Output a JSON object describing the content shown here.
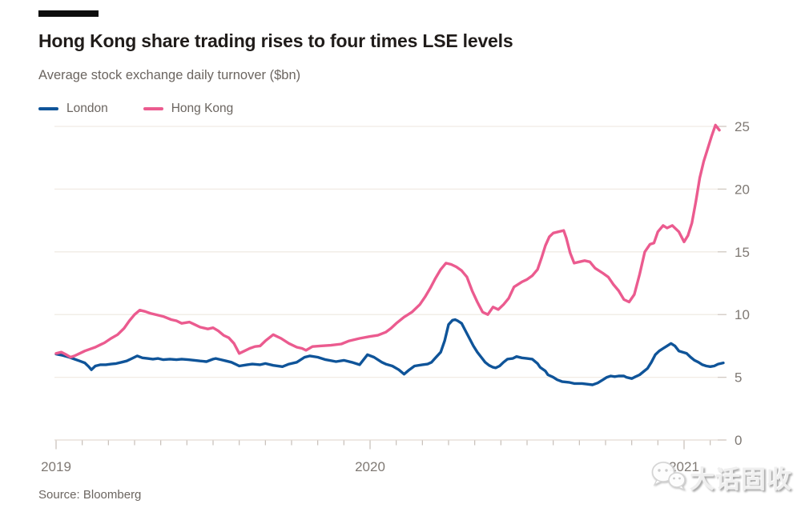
{
  "header": {
    "title": "Hong Kong share trading rises to four times LSE levels",
    "subtitle": "Average stock exchange daily turnover ($bn)"
  },
  "legend": [
    {
      "label": "London",
      "color": "#0f5499"
    },
    {
      "label": "Hong Kong",
      "color": "#eb5b8f"
    }
  ],
  "source": "Source: Bloomberg",
  "watermark": {
    "icon": "wechat-icon",
    "text": "大话固收"
  },
  "chart_data": {
    "type": "line",
    "title": "Hong Kong share trading rises to four times LSE levels",
    "ylabel": "Average stock exchange daily turnover ($bn)",
    "grid": "horizontal",
    "legend_position": "top-left",
    "x_axis": {
      "unit": "months since Jan 2019",
      "range": [
        0,
        25.7
      ],
      "minor_tick_every_months": 1,
      "ticks": [
        {
          "label": "2019",
          "t": 0
        },
        {
          "label": "2020",
          "t": 12
        },
        {
          "label": "2021",
          "t": 24
        }
      ]
    },
    "y_axis": {
      "side": "right",
      "range": [
        0,
        25.5
      ],
      "ticks": [
        0,
        5,
        10,
        15,
        20,
        25
      ]
    },
    "series": [
      {
        "name": "London",
        "color": "#0f5499",
        "points": [
          [
            0,
            6.85
          ],
          [
            0.25,
            6.75
          ],
          [
            0.5,
            6.6
          ],
          [
            0.7,
            6.45
          ],
          [
            0.9,
            6.3
          ],
          [
            1.1,
            6.15
          ],
          [
            1.25,
            5.85
          ],
          [
            1.35,
            5.6
          ],
          [
            1.5,
            5.9
          ],
          [
            1.7,
            6.0
          ],
          [
            1.9,
            6.0
          ],
          [
            2.1,
            6.05
          ],
          [
            2.3,
            6.1
          ],
          [
            2.5,
            6.2
          ],
          [
            2.7,
            6.3
          ],
          [
            2.9,
            6.5
          ],
          [
            3.1,
            6.7
          ],
          [
            3.3,
            6.55
          ],
          [
            3.5,
            6.5
          ],
          [
            3.7,
            6.45
          ],
          [
            3.9,
            6.5
          ],
          [
            4.1,
            6.4
          ],
          [
            4.35,
            6.45
          ],
          [
            4.6,
            6.4
          ],
          [
            4.8,
            6.45
          ],
          [
            5.05,
            6.4
          ],
          [
            5.3,
            6.35
          ],
          [
            5.5,
            6.3
          ],
          [
            5.75,
            6.25
          ],
          [
            6.0,
            6.45
          ],
          [
            6.1,
            6.5
          ],
          [
            6.3,
            6.4
          ],
          [
            6.5,
            6.3
          ],
          [
            6.7,
            6.2
          ],
          [
            6.9,
            6.0
          ],
          [
            7.0,
            5.9
          ],
          [
            7.3,
            6.0
          ],
          [
            7.5,
            6.05
          ],
          [
            7.8,
            6.0
          ],
          [
            8.0,
            6.1
          ],
          [
            8.3,
            5.95
          ],
          [
            8.65,
            5.85
          ],
          [
            8.9,
            6.05
          ],
          [
            9.2,
            6.2
          ],
          [
            9.5,
            6.6
          ],
          [
            9.7,
            6.7
          ],
          [
            10.0,
            6.6
          ],
          [
            10.3,
            6.4
          ],
          [
            10.7,
            6.25
          ],
          [
            11.0,
            6.35
          ],
          [
            11.3,
            6.2
          ],
          [
            11.6,
            6.0
          ],
          [
            11.9,
            6.8
          ],
          [
            12.15,
            6.6
          ],
          [
            12.45,
            6.2
          ],
          [
            12.6,
            6.05
          ],
          [
            12.85,
            5.9
          ],
          [
            13.1,
            5.6
          ],
          [
            13.3,
            5.25
          ],
          [
            13.5,
            5.6
          ],
          [
            13.7,
            5.9
          ],
          [
            14.0,
            6.0
          ],
          [
            14.2,
            6.05
          ],
          [
            14.35,
            6.2
          ],
          [
            14.5,
            6.55
          ],
          [
            14.7,
            7.0
          ],
          [
            14.85,
            7.9
          ],
          [
            15.0,
            9.2
          ],
          [
            15.15,
            9.55
          ],
          [
            15.25,
            9.6
          ],
          [
            15.35,
            9.5
          ],
          [
            15.5,
            9.3
          ],
          [
            15.65,
            8.7
          ],
          [
            15.8,
            8.1
          ],
          [
            15.95,
            7.5
          ],
          [
            16.1,
            7.0
          ],
          [
            16.25,
            6.6
          ],
          [
            16.4,
            6.2
          ],
          [
            16.55,
            5.95
          ],
          [
            16.7,
            5.8
          ],
          [
            16.8,
            5.75
          ],
          [
            16.95,
            5.9
          ],
          [
            17.1,
            6.2
          ],
          [
            17.25,
            6.45
          ],
          [
            17.45,
            6.5
          ],
          [
            17.6,
            6.65
          ],
          [
            17.8,
            6.55
          ],
          [
            18.0,
            6.5
          ],
          [
            18.2,
            6.45
          ],
          [
            18.4,
            6.1
          ],
          [
            18.5,
            5.8
          ],
          [
            18.7,
            5.5
          ],
          [
            18.8,
            5.2
          ],
          [
            19.0,
            5.0
          ],
          [
            19.15,
            4.8
          ],
          [
            19.35,
            4.65
          ],
          [
            19.6,
            4.6
          ],
          [
            19.8,
            4.5
          ],
          [
            20.1,
            4.5
          ],
          [
            20.3,
            4.45
          ],
          [
            20.5,
            4.4
          ],
          [
            20.7,
            4.55
          ],
          [
            20.9,
            4.8
          ],
          [
            21.05,
            5.0
          ],
          [
            21.2,
            5.1
          ],
          [
            21.35,
            5.05
          ],
          [
            21.5,
            5.1
          ],
          [
            21.7,
            5.1
          ],
          [
            21.8,
            5.0
          ],
          [
            22.0,
            4.9
          ],
          [
            22.1,
            5.0
          ],
          [
            22.3,
            5.2
          ],
          [
            22.45,
            5.45
          ],
          [
            22.6,
            5.7
          ],
          [
            22.75,
            6.2
          ],
          [
            22.9,
            6.8
          ],
          [
            23.05,
            7.1
          ],
          [
            23.2,
            7.3
          ],
          [
            23.35,
            7.5
          ],
          [
            23.5,
            7.7
          ],
          [
            23.65,
            7.5
          ],
          [
            23.8,
            7.1
          ],
          [
            23.95,
            7.0
          ],
          [
            24.1,
            6.9
          ],
          [
            24.25,
            6.6
          ],
          [
            24.4,
            6.35
          ],
          [
            24.55,
            6.2
          ],
          [
            24.7,
            6.0
          ],
          [
            24.85,
            5.9
          ],
          [
            25.0,
            5.85
          ],
          [
            25.15,
            5.9
          ],
          [
            25.3,
            6.05
          ],
          [
            25.5,
            6.15
          ]
        ]
      },
      {
        "name": "Hong Kong",
        "color": "#eb5b8f",
        "points": [
          [
            0,
            6.9
          ],
          [
            0.2,
            7.0
          ],
          [
            0.35,
            6.85
          ],
          [
            0.55,
            6.6
          ],
          [
            0.7,
            6.7
          ],
          [
            0.9,
            6.9
          ],
          [
            1.1,
            7.1
          ],
          [
            1.3,
            7.25
          ],
          [
            1.5,
            7.4
          ],
          [
            1.7,
            7.6
          ],
          [
            1.85,
            7.75
          ],
          [
            2.1,
            8.1
          ],
          [
            2.35,
            8.4
          ],
          [
            2.6,
            8.9
          ],
          [
            2.8,
            9.5
          ],
          [
            3.0,
            10.0
          ],
          [
            3.2,
            10.35
          ],
          [
            3.4,
            10.25
          ],
          [
            3.6,
            10.1
          ],
          [
            3.9,
            9.95
          ],
          [
            4.1,
            9.85
          ],
          [
            4.4,
            9.6
          ],
          [
            4.6,
            9.5
          ],
          [
            4.8,
            9.3
          ],
          [
            5.1,
            9.4
          ],
          [
            5.3,
            9.2
          ],
          [
            5.5,
            9.0
          ],
          [
            5.8,
            8.85
          ],
          [
            6.0,
            8.95
          ],
          [
            6.2,
            8.7
          ],
          [
            6.4,
            8.35
          ],
          [
            6.6,
            8.15
          ],
          [
            6.8,
            7.7
          ],
          [
            7.0,
            6.9
          ],
          [
            7.2,
            7.1
          ],
          [
            7.4,
            7.3
          ],
          [
            7.6,
            7.45
          ],
          [
            7.8,
            7.5
          ],
          [
            8.0,
            7.9
          ],
          [
            8.3,
            8.4
          ],
          [
            8.6,
            8.1
          ],
          [
            8.9,
            7.7
          ],
          [
            9.2,
            7.4
          ],
          [
            9.4,
            7.3
          ],
          [
            9.55,
            7.15
          ],
          [
            9.8,
            7.45
          ],
          [
            10.1,
            7.5
          ],
          [
            10.5,
            7.55
          ],
          [
            10.9,
            7.65
          ],
          [
            11.2,
            7.9
          ],
          [
            11.6,
            8.1
          ],
          [
            12.0,
            8.25
          ],
          [
            12.3,
            8.35
          ],
          [
            12.6,
            8.6
          ],
          [
            12.8,
            8.9
          ],
          [
            13.0,
            9.3
          ],
          [
            13.3,
            9.8
          ],
          [
            13.6,
            10.2
          ],
          [
            13.9,
            10.8
          ],
          [
            14.1,
            11.4
          ],
          [
            14.3,
            12.1
          ],
          [
            14.5,
            12.9
          ],
          [
            14.7,
            13.6
          ],
          [
            14.9,
            14.1
          ],
          [
            15.1,
            14.0
          ],
          [
            15.3,
            13.8
          ],
          [
            15.5,
            13.5
          ],
          [
            15.7,
            13.0
          ],
          [
            15.9,
            11.9
          ],
          [
            16.1,
            11.0
          ],
          [
            16.3,
            10.2
          ],
          [
            16.5,
            10.0
          ],
          [
            16.7,
            10.6
          ],
          [
            16.9,
            10.4
          ],
          [
            17.1,
            10.8
          ],
          [
            17.3,
            11.3
          ],
          [
            17.5,
            12.2
          ],
          [
            17.8,
            12.6
          ],
          [
            18.0,
            12.8
          ],
          [
            18.2,
            13.1
          ],
          [
            18.4,
            13.6
          ],
          [
            18.55,
            14.5
          ],
          [
            18.7,
            15.5
          ],
          [
            18.85,
            16.2
          ],
          [
            19.0,
            16.5
          ],
          [
            19.2,
            16.6
          ],
          [
            19.4,
            16.7
          ],
          [
            19.5,
            16.1
          ],
          [
            19.65,
            14.9
          ],
          [
            19.8,
            14.1
          ],
          [
            20.0,
            14.2
          ],
          [
            20.2,
            14.3
          ],
          [
            20.4,
            14.2
          ],
          [
            20.6,
            13.7
          ],
          [
            20.9,
            13.3
          ],
          [
            21.1,
            13.0
          ],
          [
            21.3,
            12.4
          ],
          [
            21.5,
            11.9
          ],
          [
            21.7,
            11.2
          ],
          [
            21.9,
            11.0
          ],
          [
            22.1,
            11.6
          ],
          [
            22.3,
            13.2
          ],
          [
            22.5,
            15.0
          ],
          [
            22.7,
            15.6
          ],
          [
            22.85,
            15.7
          ],
          [
            23.0,
            16.6
          ],
          [
            23.2,
            17.1
          ],
          [
            23.35,
            16.9
          ],
          [
            23.55,
            17.1
          ],
          [
            23.8,
            16.6
          ],
          [
            24.0,
            15.8
          ],
          [
            24.15,
            16.3
          ],
          [
            24.3,
            17.3
          ],
          [
            24.45,
            19.0
          ],
          [
            24.6,
            20.9
          ],
          [
            24.75,
            22.2
          ],
          [
            24.9,
            23.2
          ],
          [
            25.05,
            24.2
          ],
          [
            25.2,
            25.1
          ],
          [
            25.35,
            24.7
          ]
        ]
      }
    ],
    "style": {
      "gridline_color": "#f1ebe5",
      "axis_line_color": "#e3dbd4",
      "tick_color": "#c6beb7",
      "label_color": "#7f7974"
    }
  }
}
